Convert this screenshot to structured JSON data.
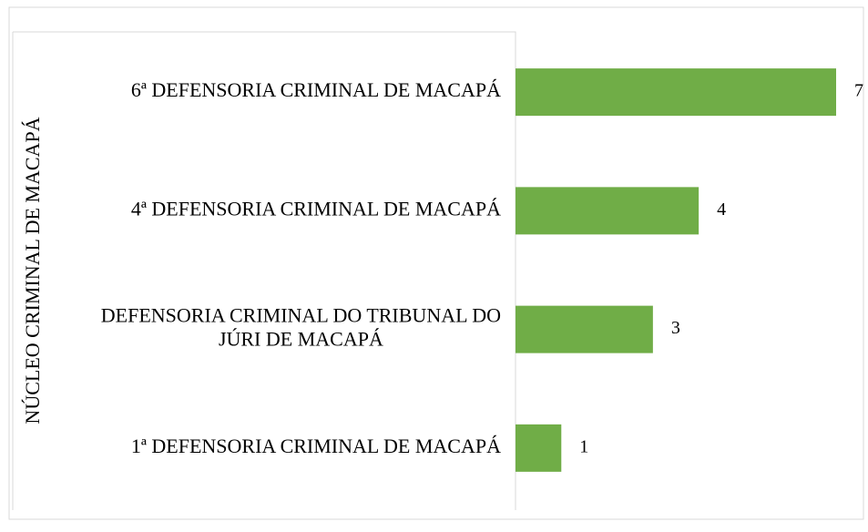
{
  "chart_data": {
    "type": "bar",
    "orientation": "horizontal",
    "group_label": "NÚCLEO CRIMINAL DE MACAPÁ",
    "categories": [
      "6ª DEFENSORIA CRIMINAL DE MACAPÁ",
      "4ª DEFENSORIA CRIMINAL DE MACAPÁ",
      "DEFENSORIA CRIMINAL DO TRIBUNAL DO JÚRI DE MACAPÁ",
      "1ª DEFENSORIA CRIMINAL DE MACAPÁ"
    ],
    "values": [
      7,
      4,
      3,
      1
    ],
    "color": "#70ad47"
  }
}
